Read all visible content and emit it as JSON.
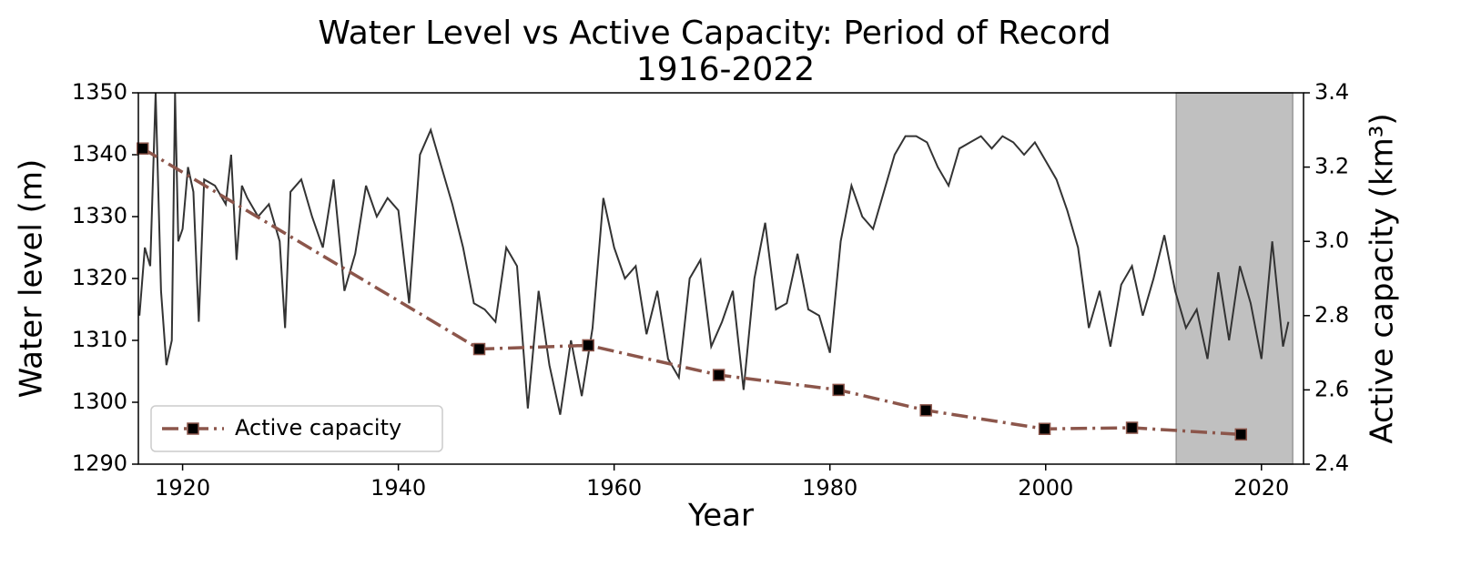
{
  "chart_data": {
    "type": "line",
    "title": "Water Level vs Active Capacity: Period of Record",
    "subtitle": "1916-2022",
    "xlabel": "Year",
    "ylabel": "Water level (m)",
    "y2label": "Active capacity (km³)",
    "xlim": [
      1915.9,
      2023.9
    ],
    "xticks": [
      1920,
      1940,
      1960,
      1980,
      2000,
      2020
    ],
    "ylim": [
      1290,
      1350
    ],
    "yticks": [
      1290,
      1300,
      1310,
      1320,
      1330,
      1340,
      1350
    ],
    "y2lim": [
      2.4,
      3.4
    ],
    "y2ticks": [
      2.4,
      2.6,
      2.8,
      {
        "value": 3,
        "label": "3.0"
      },
      3.2,
      3.4
    ],
    "shaded_span": [
      2012.1,
      2022.9
    ],
    "shade_color": "#c0c0c0",
    "legend": "lower left",
    "series": [
      {
        "color": "#333333",
        "axis": "y",
        "x": [
          1916,
          1916.5,
          1917,
          1917.5,
          1918,
          1918.5,
          1919,
          1919.3,
          1919.6,
          1920,
          1920.5,
          1921,
          1921.5,
          1922,
          1923,
          1924,
          1924.5,
          1925,
          1925.5,
          1926,
          1927,
          1928,
          1929,
          1929.5,
          1930,
          1931,
          1932,
          1933,
          1934,
          1935,
          1936,
          1937,
          1938,
          1939,
          1940,
          1941,
          1942,
          1943,
          1944,
          1945,
          1946,
          1947,
          1948,
          1949,
          1950,
          1951,
          1952,
          1953,
          1954,
          1955,
          1956,
          1957,
          1958,
          1959,
          1960,
          1961,
          1962,
          1963,
          1964,
          1965,
          1966,
          1967,
          1968,
          1969,
          1970,
          1971,
          1972,
          1973,
          1974,
          1975,
          1976,
          1977,
          1978,
          1979,
          1980,
          1981,
          1982,
          1983,
          1984,
          1985,
          1986,
          1987,
          1988,
          1989,
          1990,
          1991,
          1992,
          1993,
          1994,
          1995,
          1996,
          1997,
          1998,
          1999,
          2000,
          2001,
          2002,
          2003,
          2004,
          2005,
          2006,
          2007,
          2008,
          2009,
          2010,
          2011,
          2012,
          2013,
          2014,
          2015,
          2016,
          2017,
          2018,
          2019,
          2020,
          2021,
          2022,
          2022.5
        ],
        "values": [
          1314,
          1325,
          1322,
          1350,
          1318,
          1306,
          1310,
          1350,
          1326,
          1328,
          1338,
          1334,
          1313,
          1336,
          1335,
          1332,
          1340,
          1323,
          1335,
          1333,
          1330,
          1332,
          1326,
          1312,
          1334,
          1336,
          1330,
          1325,
          1336,
          1318,
          1324,
          1335,
          1330,
          1333,
          1331,
          1316,
          1340,
          1344,
          1338,
          1332,
          1325,
          1316,
          1315,
          1313,
          1325,
          1322,
          1299,
          1318,
          1306,
          1298,
          1310,
          1301,
          1312,
          1333,
          1325,
          1320,
          1322,
          1311,
          1318,
          1307,
          1304,
          1320,
          1323,
          1309,
          1313,
          1318,
          1302,
          1320,
          1329,
          1315,
          1316,
          1324,
          1315,
          1314,
          1308,
          1326,
          1335,
          1330,
          1328,
          1334,
          1340,
          1343,
          1343,
          1342,
          1338,
          1335,
          1341,
          1342,
          1343,
          1341,
          1343,
          1342,
          1340,
          1342,
          1339,
          1336,
          1331,
          1325,
          1312,
          1318,
          1309,
          1319,
          1322,
          1314,
          1320,
          1327,
          1318,
          1312,
          1315,
          1307,
          1321,
          1310,
          1322,
          1316,
          1307,
          1326,
          1309,
          1313
        ]
      },
      {
        "name": "Active capacity",
        "color": "#8c564b",
        "marker_color": "#000000",
        "axis": "y2",
        "x": [
          1916.3,
          1947.5,
          1957.6,
          1969.7,
          1980.8,
          1988.9,
          1999.9,
          2008.0,
          2018.1
        ],
        "values": [
          3.25,
          2.71,
          2.72,
          2.64,
          2.6,
          2.545,
          2.495,
          2.498,
          2.48
        ]
      }
    ]
  }
}
